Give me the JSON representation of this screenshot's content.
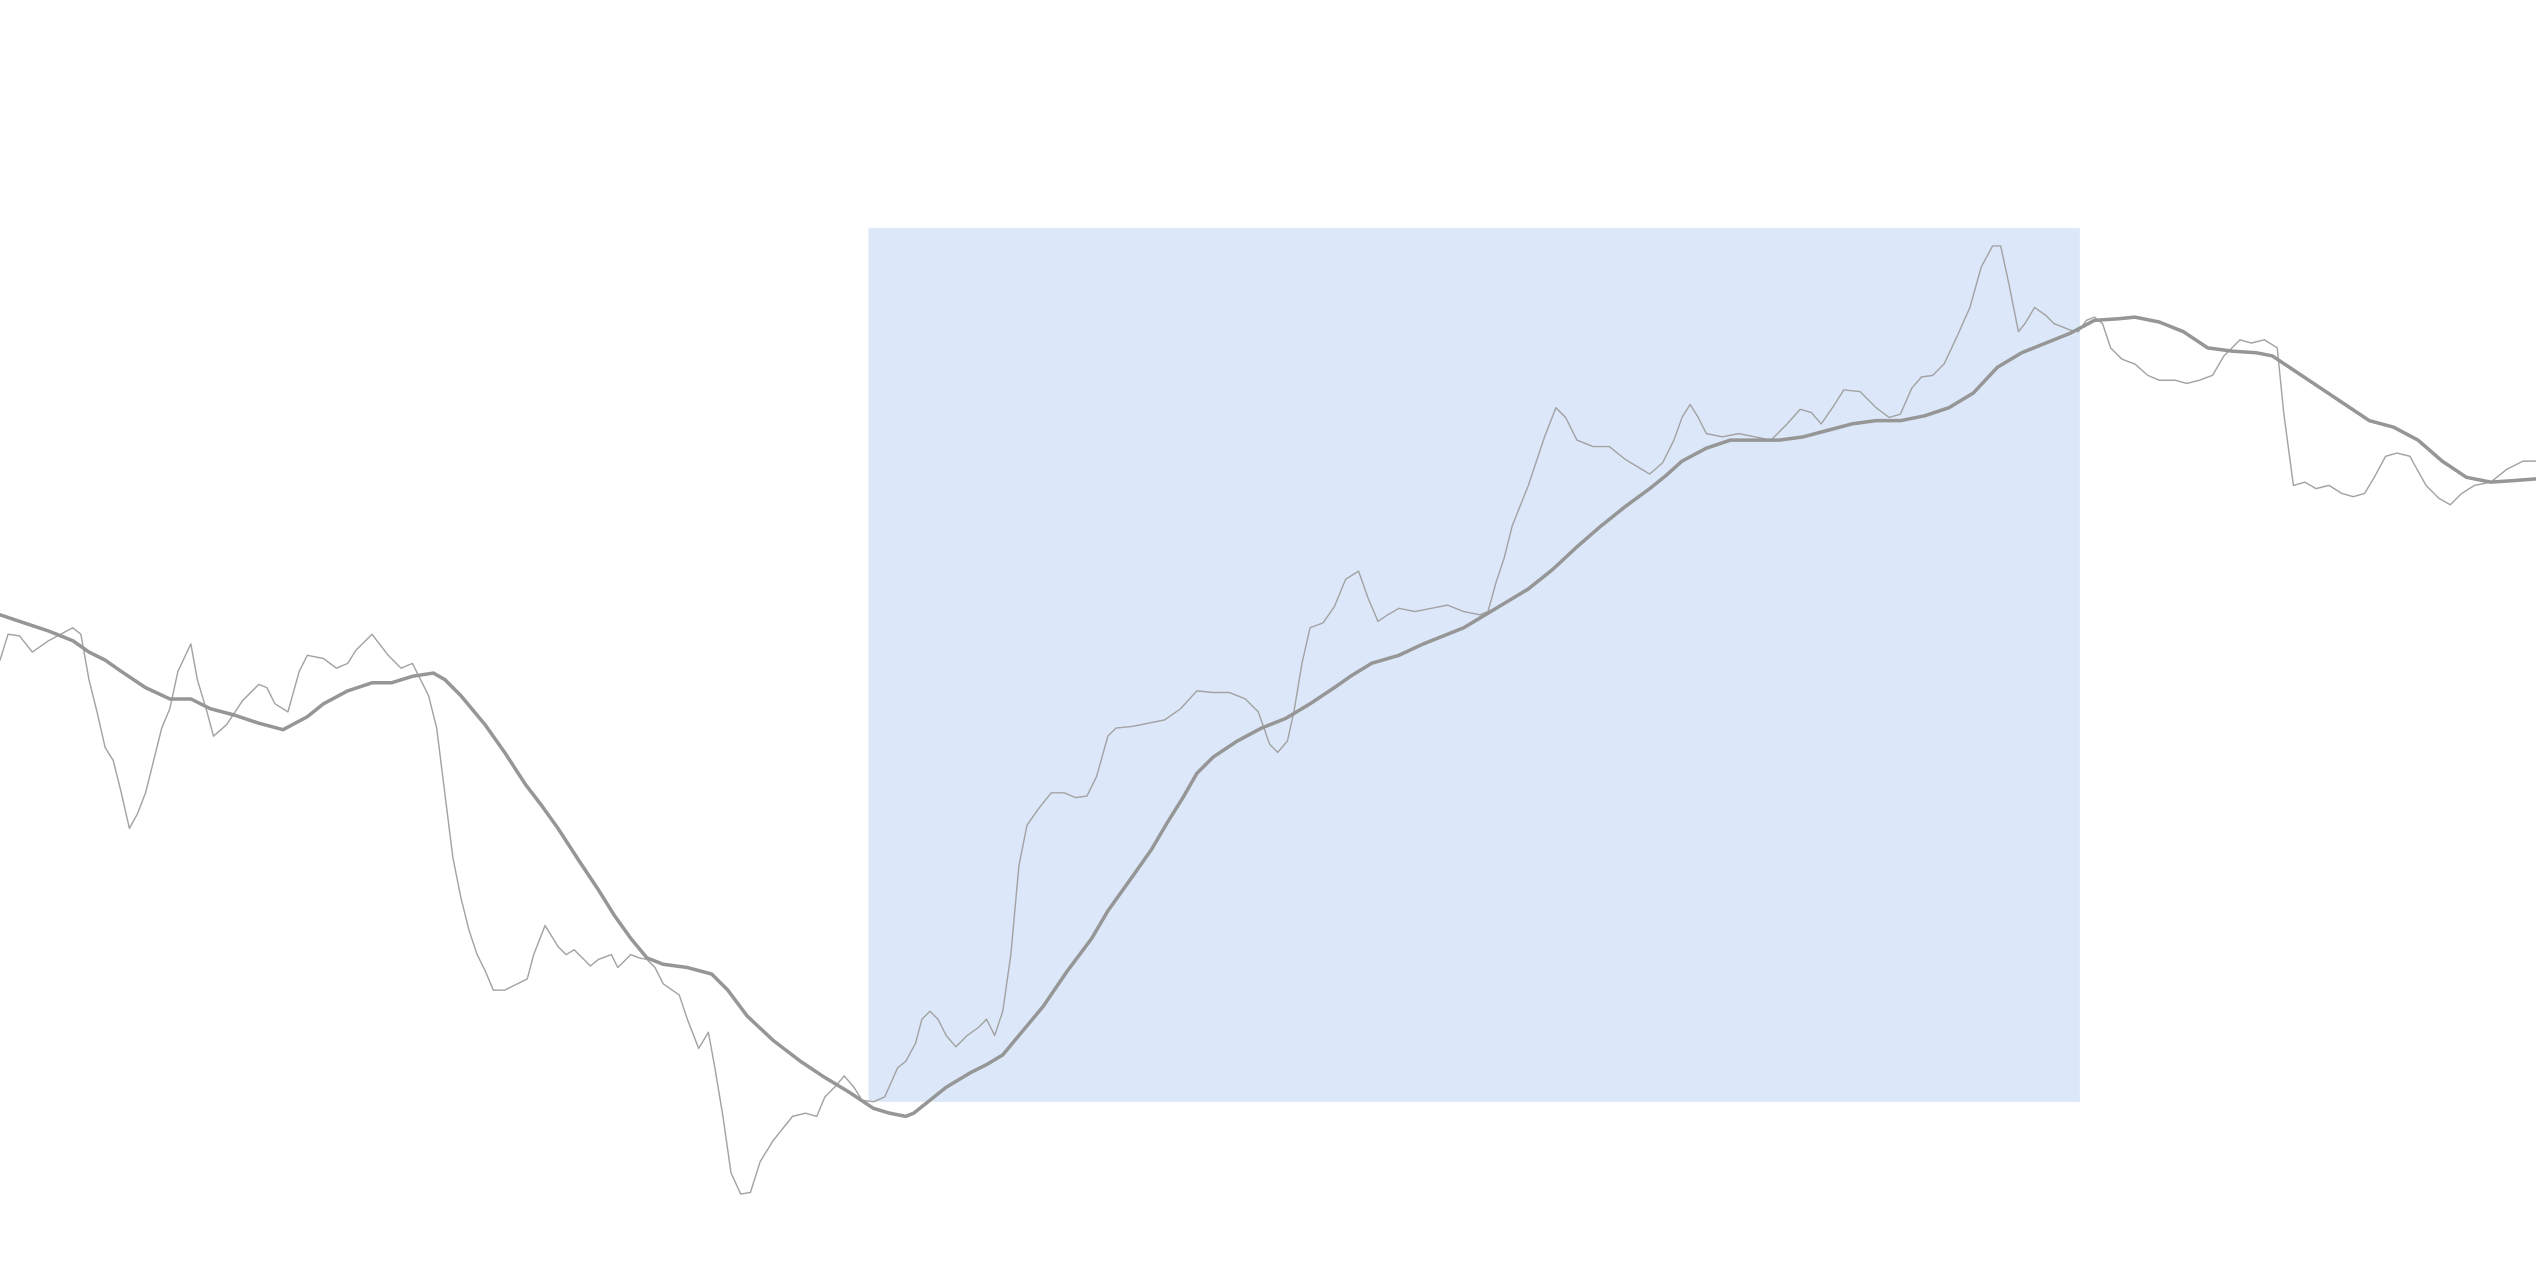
{
  "chart_data": {
    "type": "line",
    "xlim": [
      0,
      1568
    ],
    "ylim": [
      780,
      0
    ],
    "highlight": {
      "x": [
        537,
        1286
      ],
      "y": [
        681,
        141
      ],
      "color": "#dce8fa"
    },
    "series": [
      {
        "color": "#a3a3a3",
        "width": 0.9,
        "x": [
          0,
          5,
          12,
          20,
          30,
          45,
          50,
          55,
          60,
          65,
          70,
          75,
          80,
          85,
          90,
          95,
          100,
          105,
          110,
          118,
          122,
          128,
          132,
          140,
          150,
          160,
          165,
          170,
          178,
          185,
          190,
          200,
          208,
          215,
          220,
          230,
          240,
          248,
          255,
          260,
          265,
          270,
          275,
          280,
          285,
          290,
          295,
          300,
          305,
          312,
          320,
          326,
          330,
          337,
          345,
          350,
          355,
          365,
          370,
          378,
          382,
          390,
          395,
          400,
          405,
          410,
          420,
          425,
          432,
          438,
          442,
          447,
          452,
          458,
          464,
          470,
          478,
          490,
          498,
          505,
          510,
          516,
          522,
          528,
          533,
          540,
          547,
          555,
          560,
          566,
          570,
          575,
          580,
          585,
          591,
          598,
          605,
          610,
          615,
          620,
          625,
          630,
          635,
          642,
          650,
          658,
          665,
          672,
          678,
          685,
          690,
          700,
          710,
          720,
          730,
          740,
          750,
          760,
          770,
          778,
          785,
          790,
          796,
          800,
          805,
          810,
          818,
          825,
          832,
          840,
          846,
          852,
          858,
          865,
          875,
          885,
          895,
          905,
          915,
          920,
          925,
          930,
          935,
          945,
          955,
          962,
          968,
          975,
          985,
          995,
          1005,
          1015,
          1020,
          1028,
          1035,
          1040,
          1045,
          1050,
          1055,
          1065,
          1075,
          1085,
          1095,
          1105,
          1113,
          1120,
          1126,
          1133,
          1140,
          1150,
          1160,
          1168,
          1175,
          1182,
          1188,
          1195,
          1202,
          1210,
          1218,
          1225,
          1232,
          1237,
          1242,
          1248,
          1252,
          1258,
          1265,
          1270,
          1280,
          1285,
          1290,
          1295,
          1300,
          1305,
          1312,
          1320,
          1328,
          1335,
          1345,
          1352,
          1360,
          1368,
          1375,
          1385,
          1392,
          1400,
          1408,
          1412,
          1418,
          1425,
          1432,
          1440,
          1448,
          1455,
          1462,
          1468,
          1475,
          1482,
          1490,
          1500,
          1508,
          1515,
          1522,
          1530,
          1540,
          1550,
          1560,
          1568
        ],
        "values": [
          408,
          392,
          393,
          403,
          396,
          388,
          392,
          420,
          440,
          462,
          470,
          490,
          512,
          503,
          490,
          470,
          450,
          438,
          415,
          398,
          420,
          440,
          455,
          448,
          433,
          423,
          425,
          435,
          440,
          415,
          405,
          407,
          413,
          410,
          402,
          392,
          405,
          413,
          410,
          420,
          430,
          450,
          490,
          530,
          555,
          575,
          590,
          600,
          612,
          612,
          608,
          605,
          590,
          572,
          585,
          590,
          587,
          597,
          593,
          590,
          598,
          590,
          592,
          593,
          598,
          608,
          615,
          630,
          648,
          638,
          660,
          690,
          725,
          738,
          737,
          718,
          705,
          690,
          688,
          690,
          678,
          672,
          665,
          672,
          680,
          681,
          678,
          660,
          656,
          645,
          630,
          625,
          630,
          640,
          647,
          640,
          635,
          630,
          640,
          625,
          590,
          535,
          510,
          500,
          490,
          490,
          493,
          492,
          480,
          455,
          450,
          449,
          447,
          445,
          438,
          427,
          428,
          428,
          432,
          440,
          460,
          465,
          458,
          440,
          410,
          388,
          385,
          375,
          358,
          353,
          370,
          384,
          380,
          376,
          378,
          376,
          374,
          378,
          380,
          378,
          360,
          345,
          325,
          300,
          270,
          252,
          258,
          272,
          276,
          276,
          284,
          290,
          293,
          286,
          272,
          258,
          250,
          258,
          268,
          270,
          268,
          270,
          272,
          262,
          253,
          255,
          262,
          252,
          241,
          242,
          252,
          258,
          256,
          240,
          233,
          232,
          225,
          208,
          190,
          165,
          152,
          152,
          175,
          205,
          200,
          190,
          195,
          200,
          204,
          205,
          198,
          196,
          200,
          215,
          222,
          225,
          232,
          235,
          235,
          237,
          235,
          232,
          220,
          210,
          212,
          210,
          215,
          255,
          300,
          298,
          302,
          300,
          305,
          307,
          305,
          295,
          282,
          280,
          282,
          300,
          308,
          312,
          305,
          300,
          298,
          290,
          285,
          285
        ]
      },
      {
        "color": "#969696",
        "width": 2.2,
        "x": [
          0,
          15,
          30,
          45,
          55,
          65,
          75,
          90,
          105,
          118,
          130,
          145,
          160,
          175,
          190,
          200,
          215,
          230,
          242,
          255,
          268,
          275,
          285,
          300,
          312,
          325,
          335,
          345,
          358,
          370,
          380,
          390,
          400,
          410,
          425,
          440,
          450,
          462,
          478,
          495,
          510,
          525,
          540,
          550,
          560,
          565,
          575,
          585,
          600,
          610,
          620,
          630,
          645,
          660,
          675,
          685,
          700,
          712,
          722,
          732,
          740,
          750,
          765,
          780,
          795,
          810,
          825,
          835,
          848,
          865,
          880,
          895,
          905,
          915,
          930,
          945,
          960,
          975,
          990,
          1005,
          1020,
          1030,
          1040,
          1055,
          1070,
          1085,
          1100,
          1115,
          1130,
          1145,
          1160,
          1175,
          1190,
          1205,
          1220,
          1235,
          1250,
          1265,
          1280,
          1295,
          1310,
          1320,
          1335,
          1350,
          1365,
          1380,
          1395,
          1405,
          1420,
          1435,
          1450,
          1465,
          1480,
          1495,
          1510,
          1525,
          1540,
          1555,
          1568
        ],
        "values": [
          380,
          385,
          390,
          396,
          403,
          408,
          415,
          425,
          432,
          432,
          438,
          442,
          447,
          451,
          443,
          435,
          427,
          422,
          422,
          418,
          416,
          420,
          430,
          448,
          465,
          485,
          498,
          512,
          532,
          550,
          566,
          580,
          592,
          596,
          598,
          602,
          612,
          628,
          643,
          656,
          666,
          675,
          685,
          688,
          690,
          688,
          680,
          672,
          663,
          658,
          652,
          640,
          622,
          600,
          580,
          563,
          542,
          525,
          508,
          492,
          478,
          468,
          458,
          450,
          444,
          435,
          425,
          418,
          410,
          405,
          398,
          392,
          388,
          382,
          373,
          364,
          352,
          338,
          325,
          313,
          302,
          294,
          285,
          277,
          272,
          272,
          272,
          270,
          266,
          262,
          260,
          260,
          257,
          252,
          243,
          227,
          218,
          212,
          206,
          198,
          197,
          196,
          199,
          205,
          215,
          217,
          218,
          220,
          230,
          240,
          250,
          260,
          264,
          272,
          285,
          295,
          298,
          297,
          296
        ]
      }
    ]
  }
}
